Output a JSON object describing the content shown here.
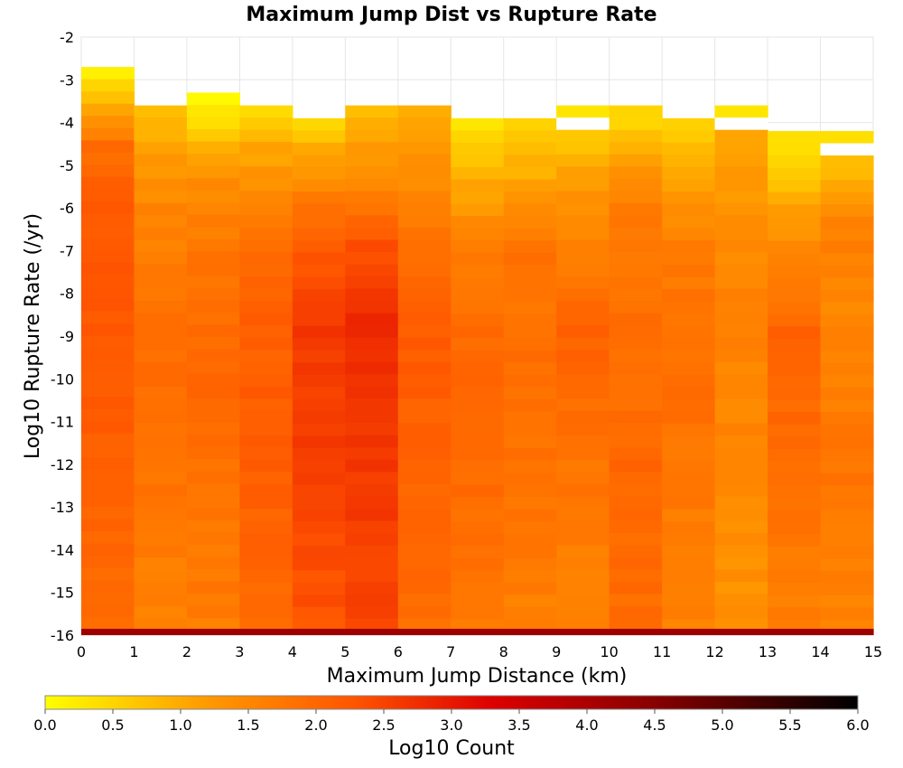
{
  "chart_data": {
    "type": "heatmap",
    "title": "Maximum Jump Dist vs Rupture Rate",
    "xlabel": "Maximum Jump Distance (km)",
    "ylabel": "Log10 Rupture Rate (/yr)",
    "xlim": [
      0,
      15
    ],
    "ylim": [
      -16,
      -2
    ],
    "x_ticks": [
      "0",
      "1",
      "2",
      "3",
      "4",
      "5",
      "6",
      "7",
      "8",
      "9",
      "10",
      "11",
      "12",
      "13",
      "14",
      "15"
    ],
    "y_ticks": [
      "-2",
      "-3",
      "-4",
      "-5",
      "-6",
      "-7",
      "-8",
      "-9",
      "-10",
      "-11",
      "-12",
      "-13",
      "-14",
      "-15",
      "-16"
    ],
    "x_bin_width": 1,
    "y_bin_height": 0.286,
    "colorbar": {
      "label": "Log10 Count",
      "min": 0,
      "max": 6,
      "ticks": [
        "0.0",
        "0.5",
        "1.0",
        "1.5",
        "2.0",
        "2.5",
        "3.0",
        "3.5",
        "4.0",
        "4.5",
        "5.0",
        "5.5",
        "6.0"
      ],
      "gradient": [
        "#ffff00",
        "#ff9900",
        "#ff5500",
        "#dd0000",
        "#880000",
        "#000000"
      ]
    },
    "columns": [
      {
        "x": 0.5,
        "top": -2.7,
        "profile": [
          [
            -2.7,
            0.15
          ],
          [
            -3.8,
            1.2
          ],
          [
            -4.5,
            1.9
          ],
          [
            -6,
            2.2
          ],
          [
            -9,
            2.25
          ],
          [
            -12,
            2.1
          ],
          [
            -15.7,
            1.95
          ]
        ]
      },
      {
        "x": 1.5,
        "top": -3.6,
        "profile": [
          [
            -3.6,
            0.6
          ],
          [
            -4.5,
            1.1
          ],
          [
            -6,
            1.5
          ],
          [
            -9,
            1.95
          ],
          [
            -12,
            1.8
          ],
          [
            -15.7,
            1.6
          ]
        ]
      },
      {
        "x": 2.5,
        "top": -3.3,
        "profile": [
          [
            -3.3,
            0.1
          ],
          [
            -4,
            0.4
          ],
          [
            -5,
            1.3
          ],
          [
            -7,
            1.75
          ],
          [
            -10,
            2.0
          ],
          [
            -13,
            1.8
          ],
          [
            -15.7,
            1.65
          ]
        ]
      },
      {
        "x": 3.5,
        "top": -3.6,
        "profile": [
          [
            -3.6,
            0.3
          ],
          [
            -4.5,
            1.0
          ],
          [
            -6,
            1.6
          ],
          [
            -8,
            2.1
          ],
          [
            -11,
            2.2
          ],
          [
            -15.7,
            1.95
          ]
        ]
      },
      {
        "x": 4.5,
        "top": -3.9,
        "profile": [
          [
            -3.9,
            0.4
          ],
          [
            -5,
            1.2
          ],
          [
            -6.5,
            2.1
          ],
          [
            -8.5,
            2.6
          ],
          [
            -11,
            2.6
          ],
          [
            -15.7,
            2.3
          ]
        ]
      },
      {
        "x": 5.5,
        "top": -3.6,
        "profile": [
          [
            -3.6,
            0.7
          ],
          [
            -5,
            1.3
          ],
          [
            -6.8,
            2.3
          ],
          [
            -9,
            2.85
          ],
          [
            -11,
            2.7
          ],
          [
            -15.7,
            2.45
          ]
        ]
      },
      {
        "x": 6.5,
        "top": -3.6,
        "profile": [
          [
            -3.6,
            0.9
          ],
          [
            -5,
            1.3
          ],
          [
            -7,
            1.9
          ],
          [
            -9,
            2.2
          ],
          [
            -12,
            2.1
          ],
          [
            -15.7,
            1.9
          ]
        ]
      },
      {
        "x": 7.5,
        "top": -3.9,
        "profile": [
          [
            -3.9,
            0.3
          ],
          [
            -5,
            0.8
          ],
          [
            -7,
            1.7
          ],
          [
            -10,
            2.1
          ],
          [
            -13,
            1.9
          ],
          [
            -15.7,
            1.7
          ]
        ]
      },
      {
        "x": 8.5,
        "top": -3.9,
        "profile": [
          [
            -3.9,
            0.5
          ],
          [
            -5,
            0.9
          ],
          [
            -7,
            1.8
          ],
          [
            -10,
            1.9
          ],
          [
            -13,
            1.8
          ],
          [
            -15.7,
            1.6
          ]
        ]
      },
      {
        "x": 9.5,
        "top": -3.6,
        "profile": [
          [
            -3.6,
            0.2
          ],
          [
            -4.4,
            0.7
          ],
          [
            -6,
            1.4
          ],
          [
            -9,
            2.1
          ],
          [
            -12,
            1.8
          ],
          [
            -15.7,
            1.55
          ]
        ]
      },
      {
        "x": 10.5,
        "top": -3.6,
        "profile": [
          [
            -3.6,
            0.3
          ],
          [
            -4.5,
            0.9
          ],
          [
            -6,
            1.7
          ],
          [
            -9,
            1.9
          ],
          [
            -12,
            2.0
          ],
          [
            -15.7,
            1.9
          ]
        ]
      },
      {
        "x": 11.5,
        "top": -3.9,
        "profile": [
          [
            -3.9,
            0.4
          ],
          [
            -5,
            0.9
          ],
          [
            -7,
            1.7
          ],
          [
            -10,
            1.9
          ],
          [
            -13,
            1.7
          ],
          [
            -15.7,
            1.6
          ]
        ]
      },
      {
        "x": 12.5,
        "top": -3.6,
        "profile": [
          [
            -3.6,
            0.2
          ],
          [
            -4.3,
            1.0
          ],
          [
            -6,
            1.3
          ],
          [
            -8,
            1.6
          ],
          [
            -11,
            1.5
          ],
          [
            -15.7,
            1.3
          ]
        ]
      },
      {
        "x": 13.5,
        "top": -4.2,
        "profile": [
          [
            -4.2,
            0.2
          ],
          [
            -5,
            0.6
          ],
          [
            -6.5,
            1.3
          ],
          [
            -9,
            2.1
          ],
          [
            -12,
            1.9
          ],
          [
            -15.7,
            1.6
          ]
        ]
      },
      {
        "x": 14.5,
        "top": -4.2,
        "profile": [
          [
            -4.2,
            0.2
          ],
          [
            -5,
            0.8
          ],
          [
            -6.5,
            1.6
          ],
          [
            -9,
            1.5
          ],
          [
            -12,
            1.8
          ],
          [
            -15.7,
            1.55
          ]
        ]
      }
    ],
    "holes": [
      {
        "x": 9.5,
        "y": -4.0
      },
      {
        "x": 12.5,
        "y": -4.0
      },
      {
        "x": 14.5,
        "y": -4.5
      }
    ],
    "bottom_row": {
      "y_from": -15.85,
      "y_to": -16.0,
      "value": 4.2
    }
  }
}
